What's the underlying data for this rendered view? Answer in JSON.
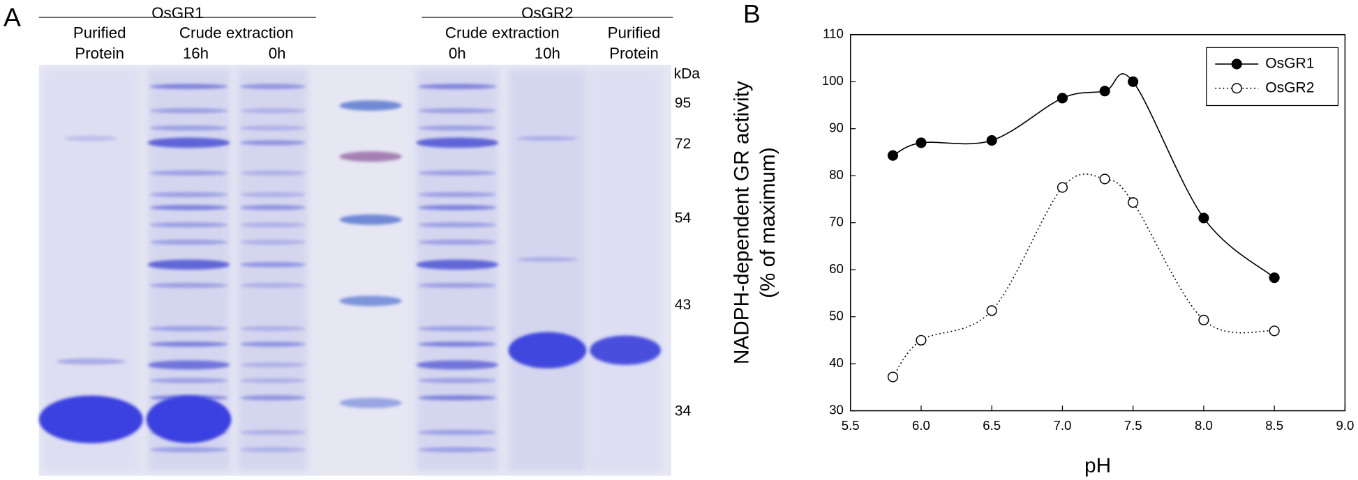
{
  "panel_a": {
    "label": "A",
    "groups": [
      {
        "name": "OsGR1",
        "lanes": [
          {
            "lines": [
              "Purified",
              "Protein"
            ]
          },
          {
            "lines": [
              "16h"
            ]
          },
          {
            "lines": [
              "0h"
            ]
          }
        ],
        "subheader": "Crude extraction"
      },
      {
        "name": "OsGR2",
        "lanes": [
          {
            "lines": [
              "0h"
            ]
          },
          {
            "lines": [
              "10h"
            ]
          },
          {
            "lines": [
              "Purified",
              "Protein"
            ]
          }
        ],
        "subheader": "Crude extraction"
      }
    ],
    "marker_unit": "kDa",
    "markers": [
      "95",
      "72",
      "54",
      "43",
      "34"
    ]
  },
  "chart_data": {
    "type": "line",
    "panel_label": "B",
    "x_label": "pH",
    "y_label": [
      "NADPH-dependent GR activity",
      "(% of maximum)"
    ],
    "x": [
      5.8,
      6.0,
      6.5,
      7.0,
      7.3,
      7.5,
      8.0,
      8.5
    ],
    "series": [
      {
        "name": "OsGR1",
        "color": "#000000",
        "line_style": "solid",
        "marker_fill": "#000000",
        "values": [
          84.3,
          87,
          87.5,
          96.5,
          98,
          100,
          71,
          58.3
        ]
      },
      {
        "name": "OsGR2",
        "color": "#000000",
        "line_style": "dotted",
        "marker_fill": "#ffffff",
        "values": [
          37.2,
          45,
          51.3,
          77.5,
          79.3,
          74.3,
          49.3,
          47
        ]
      }
    ],
    "xlim": [
      5.5,
      9.0
    ],
    "xticks": [
      5.5,
      {
        "value": 6,
        "label": "6.0"
      },
      6.5,
      {
        "value": 7,
        "label": "7.0"
      },
      7.5,
      {
        "value": 8,
        "label": "8.0"
      },
      8.5,
      {
        "value": 9,
        "label": "9.0"
      }
    ],
    "ylim": [
      30,
      110
    ],
    "yticks": [
      30,
      40,
      50,
      60,
      70,
      80,
      90,
      100,
      110
    ],
    "legend": "top-right"
  }
}
